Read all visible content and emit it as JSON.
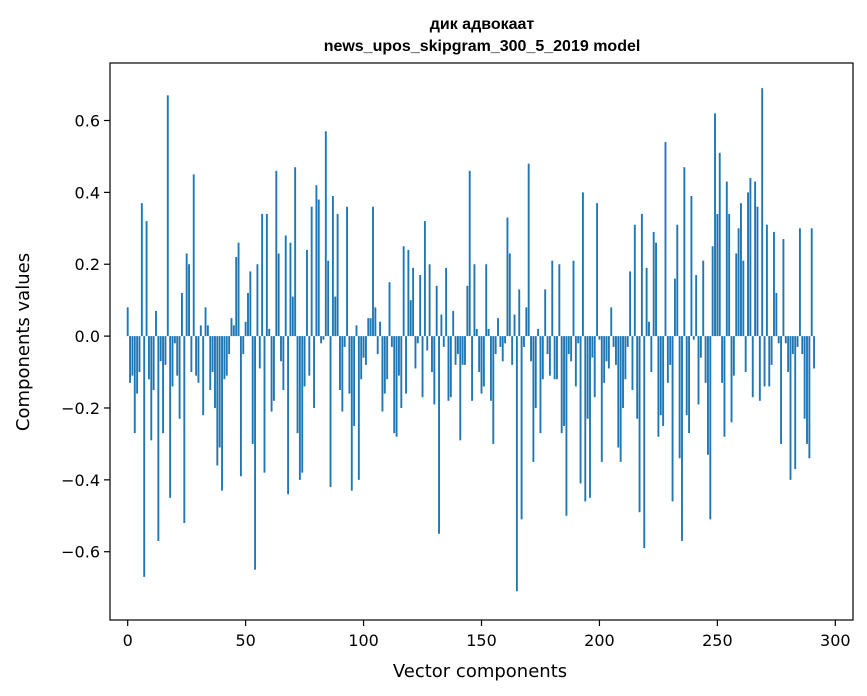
{
  "chart_data": {
    "type": "bar",
    "title_line1": "дик адвокаат",
    "title_line2": "news_upos_skipgram_300_5_2019 model",
    "xlabel": "Vector components",
    "ylabel": "Components values",
    "xlim": [
      -7.5,
      307.5
    ],
    "ylim": [
      -0.79,
      0.76
    ],
    "xticks": [
      0,
      50,
      100,
      150,
      200,
      250,
      300
    ],
    "yticks": [
      -0.6,
      -0.4,
      -0.2,
      0.0,
      0.2,
      0.4,
      0.6
    ],
    "ytick_labels": [
      "−0.6",
      "−0.4",
      "−0.2",
      "0.0",
      "0.2",
      "0.4",
      "0.6"
    ],
    "xtick_labels": [
      "0",
      "50",
      "100",
      "150",
      "200",
      "250",
      "300"
    ],
    "bar_color": "#1f77b4",
    "grid": false,
    "x_start": 0,
    "values": [
      0.08,
      -0.13,
      -0.11,
      -0.27,
      -0.16,
      -0.1,
      0.37,
      -0.67,
      0.32,
      -0.12,
      -0.29,
      -0.15,
      0.07,
      -0.57,
      -0.07,
      -0.27,
      -0.08,
      0.67,
      -0.45,
      -0.14,
      -0.02,
      -0.11,
      -0.23,
      0.12,
      -0.52,
      0.23,
      0.2,
      -0.1,
      0.45,
      -0.11,
      -0.13,
      0.03,
      -0.22,
      0.08,
      0.03,
      -0.15,
      -0.1,
      -0.2,
      -0.36,
      -0.31,
      -0.43,
      -0.12,
      -0.11,
      -0.05,
      0.05,
      0.03,
      0.22,
      0.26,
      -0.39,
      -0.05,
      0.04,
      0.12,
      0.18,
      -0.3,
      -0.65,
      0.2,
      -0.09,
      0.34,
      -0.38,
      0.34,
      0.02,
      -0.21,
      -0.18,
      0.46,
      0.23,
      -0.07,
      -0.15,
      0.28,
      -0.44,
      0.26,
      0.11,
      0.47,
      -0.27,
      -0.4,
      -0.38,
      -0.14,
      0.24,
      -0.11,
      0.36,
      -0.2,
      0.42,
      0.38,
      -0.02,
      -0.01,
      0.57,
      0.21,
      -0.42,
      0.39,
      0.11,
      0.34,
      -0.15,
      -0.21,
      -0.03,
      0.36,
      -0.16,
      -0.43,
      -0.25,
      0.03,
      -0.4,
      -0.12,
      -0.06,
      -0.08,
      0.05,
      0.05,
      0.36,
      0.08,
      -0.05,
      0.04,
      -0.21,
      -0.16,
      -0.12,
      0.15,
      -0.03,
      -0.27,
      -0.28,
      -0.11,
      -0.2,
      0.25,
      -0.16,
      0.24,
      0.1,
      0.19,
      -0.09,
      -0.02,
      0.17,
      -0.17,
      0.32,
      -0.04,
      0.2,
      -0.1,
      -0.19,
      0.14,
      -0.55,
      0.06,
      -0.03,
      0.19,
      -0.18,
      -0.17,
      0.07,
      -0.08,
      -0.05,
      -0.29,
      -0.08,
      -0.08,
      0.14,
      0.46,
      -0.18,
      0.2,
      0.02,
      -0.1,
      -0.16,
      -0.14,
      0.2,
      0.02,
      -0.18,
      -0.3,
      -0.05,
      0.05,
      -0.03,
      -0.07,
      -0.02,
      0.33,
      0.23,
      -0.08,
      0.06,
      -0.71,
      0.13,
      -0.51,
      -0.03,
      0.08,
      0.48,
      -0.07,
      -0.35,
      -0.2,
      0.02,
      -0.27,
      -0.12,
      0.13,
      -0.05,
      -0.11,
      0.21,
      -0.12,
      -0.12,
      0.2,
      -0.27,
      -0.25,
      -0.5,
      -0.05,
      -0.07,
      0.21,
      -0.14,
      -0.02,
      -0.41,
      0.4,
      -0.46,
      -0.23,
      -0.45,
      -0.06,
      -0.17,
      0.37,
      -0.01,
      -0.35,
      -0.13,
      -0.07,
      -0.09,
      0.08,
      -0.03,
      -0.08,
      -0.31,
      -0.35,
      -0.2,
      -0.12,
      -0.03,
      0.18,
      -0.15,
      0.31,
      -0.23,
      -0.49,
      0.34,
      -0.59,
      0.19,
      0.04,
      -0.1,
      0.29,
      0.26,
      -0.28,
      -0.22,
      -0.25,
      0.54,
      -0.13,
      -0.08,
      -0.46,
      0.16,
      0.31,
      -0.34,
      -0.57,
      0.47,
      -0.22,
      -0.27,
      0.39,
      -0.01,
      0.17,
      -0.19,
      -0.06,
      0.21,
      -0.13,
      -0.33,
      -0.51,
      0.25,
      0.62,
      0.34,
      0.51,
      -0.13,
      -0.28,
      0.43,
      0.34,
      -0.24,
      -0.11,
      0.23,
      0.3,
      0.37,
      0.21,
      -0.1,
      0.4,
      0.44,
      -0.17,
      0.43,
      0.36,
      -0.18,
      0.69,
      -0.14,
      0.31,
      -0.14,
      -0.08,
      0.29,
      0.12,
      -0.02,
      -0.3,
      0.27,
      -0.02,
      -0.1,
      -0.4,
      -0.05,
      -0.37,
      -0.03,
      0.3,
      -0.05,
      -0.23,
      -0.3,
      -0.34,
      0.3,
      -0.09
    ]
  }
}
